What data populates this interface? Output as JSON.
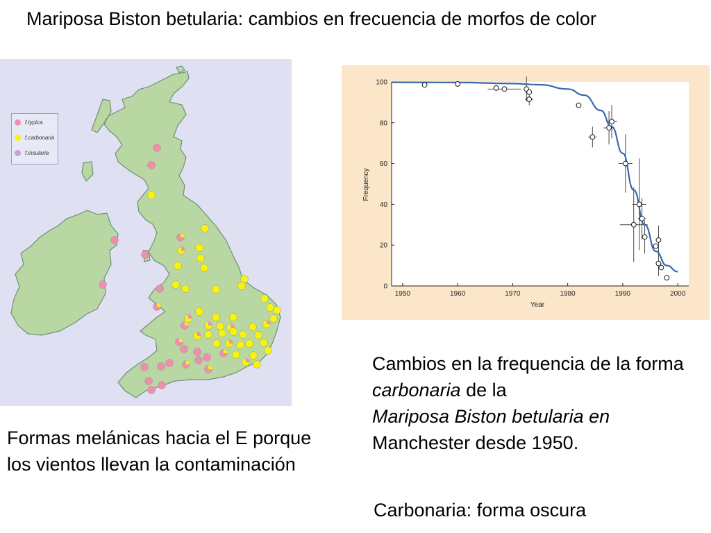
{
  "title": "Mariposa Biston betularia: cambios en frecuencia de morfos de color",
  "map": {
    "colors": {
      "water": "#dfe1f3",
      "land": "#b9d7a2",
      "coast": "#6f8f78",
      "typica": "#ef8fae",
      "carbonaria": "#f7f20f",
      "insularia": "#c7a2d0"
    },
    "legend": [
      {
        "label": "f.typica",
        "color": "#ef8fae"
      },
      {
        "label": "f.carbonaria",
        "color": "#f7f20f"
      },
      {
        "label": "f.insularia",
        "color": "#c7a2d0"
      }
    ]
  },
  "chart_data": {
    "type": "scatter",
    "ylabel": "Frequency",
    "xlabel": "Year",
    "xlim": [
      1948,
      2002
    ],
    "ylim": [
      0,
      100
    ],
    "xticks": [
      1950,
      1960,
      1970,
      1980,
      1990,
      2000
    ],
    "yticks": [
      0,
      20,
      40,
      60,
      80,
      100
    ],
    "points": [
      {
        "x": 1954,
        "y": 98.5
      },
      {
        "x": 1960,
        "y": 99
      },
      {
        "x": 1967,
        "y": 97
      },
      {
        "x": 1968.5,
        "y": 96.5
      },
      {
        "x": 1972.5,
        "y": 96.5
      },
      {
        "x": 1973,
        "y": 95
      },
      {
        "x": 1973,
        "y": 91.5
      },
      {
        "x": 1982,
        "y": 88.5
      },
      {
        "x": 1984.5,
        "y": 73
      },
      {
        "x": 1987.5,
        "y": 77.5
      },
      {
        "x": 1988,
        "y": 80.5
      },
      {
        "x": 1990.5,
        "y": 60
      },
      {
        "x": 1992,
        "y": 30
      },
      {
        "x": 1993,
        "y": 40
      },
      {
        "x": 1993.5,
        "y": 33
      },
      {
        "x": 1994,
        "y": 24
      },
      {
        "x": 1996,
        "y": 19.5
      },
      {
        "x": 1996.5,
        "y": 22.5
      },
      {
        "x": 1996.5,
        "y": 11
      },
      {
        "x": 1997,
        "y": 9
      },
      {
        "x": 1998,
        "y": 4
      }
    ],
    "curve": [
      {
        "x": 1948,
        "y": 99.8
      },
      {
        "x": 1960,
        "y": 99.7
      },
      {
        "x": 1970,
        "y": 99.2
      },
      {
        "x": 1975,
        "y": 98.6
      },
      {
        "x": 1980,
        "y": 96.5
      },
      {
        "x": 1983,
        "y": 93.5
      },
      {
        "x": 1986,
        "y": 86
      },
      {
        "x": 1988,
        "y": 78
      },
      {
        "x": 1990,
        "y": 65
      },
      {
        "x": 1992,
        "y": 47
      },
      {
        "x": 1994,
        "y": 30
      },
      {
        "x": 1996,
        "y": 17
      },
      {
        "x": 1998,
        "y": 10
      },
      {
        "x": 2000,
        "y": 7
      }
    ],
    "colors": {
      "curve": "#3a67ae",
      "points": "#1a1a1a",
      "plot_bg": "#ffffff"
    }
  },
  "captions": {
    "right_1": "Cambios en la frequencia de la forma",
    "right_2": "carbonaria",
    "right_3": "de la",
    "right_4": "Mariposa Biston betularia en",
    "right_5": "Manchester desde 1950.",
    "left": "Formas melánicas hacia el E porque los vientos llevan la contaminación",
    "bottom": "Carbonaria: forma oscura"
  }
}
